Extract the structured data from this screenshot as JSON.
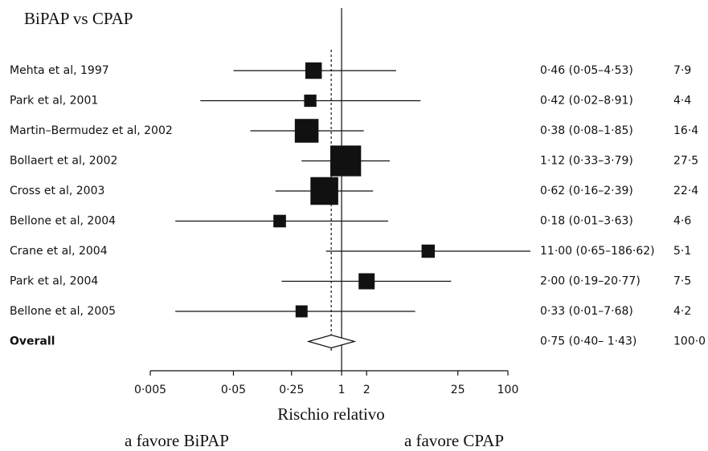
{
  "chart_data": {
    "type": "forest",
    "title": "BiPAP vs CPAP",
    "categories": [
      "Mehta et al, 1997",
      "Park et al, 2001",
      "Martin–Bermudez et al, 2002",
      "Bollaert et al, 2002",
      "Cross et al, 2003",
      "Bellone et al, 2004",
      "Crane et al, 2004",
      "Park et al, 2004",
      "Bellone et al, 2005"
    ],
    "values": [
      0.46,
      0.42,
      0.38,
      1.12,
      0.62,
      0.18,
      11.0,
      2.0,
      0.33
    ],
    "lower": [
      0.05,
      0.02,
      0.08,
      0.33,
      0.16,
      0.01,
      0.65,
      0.19,
      0.01
    ],
    "upper": [
      4.53,
      8.91,
      1.85,
      3.79,
      2.39,
      3.63,
      186.62,
      20.77,
      7.68
    ],
    "value_labels": [
      "0·46 (0·05–4·53)",
      "0·42 (0·02–8·91)",
      "0·38 (0·08–1·85)",
      "1·12 (0·33–3·79)",
      "0·62 (0·16–2·39)",
      "0·18 (0·01–3·63)",
      "11·00 (0·65–186·62)",
      "2·00 (0·19–20·77)",
      "0·33 (0·01–7·68)"
    ],
    "weights": [
      7.9,
      4.4,
      16.4,
      27.5,
      22.4,
      4.6,
      5.1,
      7.5,
      4.2
    ],
    "weight_labels": [
      "7·9",
      "4·4",
      "16·4",
      "27·5",
      "22·4",
      "4·6",
      "5·1",
      "7·5",
      "4·2"
    ],
    "overall": {
      "name": "Overall",
      "value": 0.75,
      "lower": 0.4,
      "upper": 1.43,
      "value_label": "0·75 (0·40– 1·43)",
      "weight": 100,
      "weight_label": "100·0"
    },
    "reference_line": 1,
    "xlim": [
      0.005,
      100
    ],
    "log_x": true,
    "xticks": [
      {
        "value": 0.005,
        "label": "0·005"
      },
      {
        "value": 0.05,
        "label": "0·05"
      },
      {
        "value": 0.25,
        "label": "0·25"
      },
      1,
      2,
      25,
      100
    ],
    "x_label": "Rischio relativo",
    "annotations": [
      "a favore BiPAP",
      "a favore CPAP"
    ],
    "color": "#111111"
  }
}
